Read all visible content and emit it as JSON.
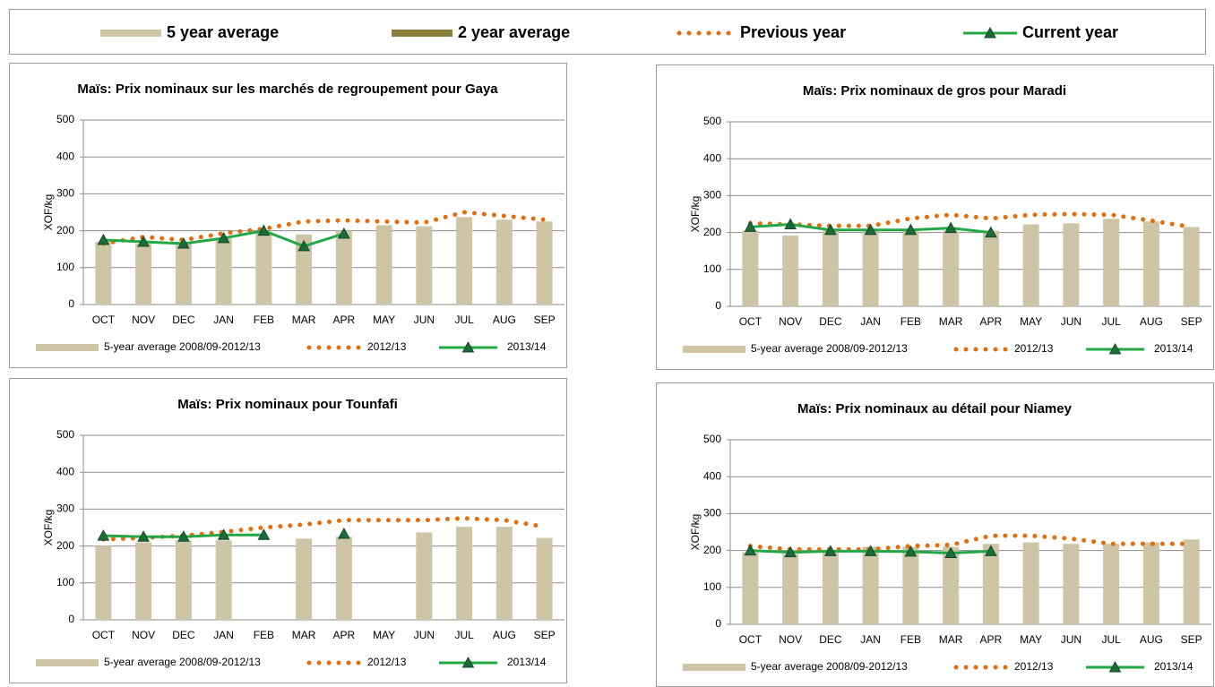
{
  "legend": {
    "items": [
      {
        "name": "5 year average",
        "color": "#cdc5a6",
        "style": "band"
      },
      {
        "name": "2 year average",
        "color": "#8b7d3a",
        "style": "band"
      },
      {
        "name": "Previous year",
        "color": "#e46c0a",
        "style": "dotted"
      },
      {
        "name": "Current year",
        "color": "#22a845",
        "style": "line"
      }
    ]
  },
  "chart_data": [
    {
      "type": "combo",
      "title": "Maïs: Prix nominaux sur les marchés de regroupement pour Gaya",
      "y_label": "XOF/kg",
      "categories": [
        "OCT",
        "NOV",
        "DEC",
        "JAN",
        "FEB",
        "MAR",
        "APR",
        "MAY",
        "JUN",
        "JUL",
        "AUG",
        "SEP"
      ],
      "ylim": [
        0,
        500
      ],
      "yticks": [
        0,
        100,
        200,
        300,
        400,
        500
      ],
      "grid": true,
      "series": [
        {
          "name": "5-year average 2008/09-2012/13",
          "type": "bar",
          "color": "#cdc5a6",
          "values": [
            170,
            165,
            170,
            180,
            195,
            190,
            200,
            215,
            212,
            237,
            230,
            225
          ]
        },
        {
          "name": "2012/13",
          "type": "line",
          "line_style": "dotted",
          "color": "#e46c0a",
          "values": [
            165,
            183,
            175,
            193,
            205,
            225,
            228,
            225,
            222,
            250,
            240,
            230
          ]
        },
        {
          "name": "2013/14",
          "type": "line",
          "line_style": "solid",
          "marker": "triangle",
          "color": "#22a845",
          "values": [
            175,
            170,
            165,
            180,
            200,
            158,
            192,
            null,
            null,
            null,
            null,
            null
          ]
        }
      ]
    },
    {
      "type": "combo",
      "title": "Maïs: Prix nominaux de gros pour Maradi",
      "y_label": "XOF/kg",
      "categories": [
        "OCT",
        "NOV",
        "DEC",
        "JAN",
        "FEB",
        "MAR",
        "APR",
        "MAY",
        "JUN",
        "JUL",
        "AUG",
        "SEP"
      ],
      "ylim": [
        0,
        500
      ],
      "yticks": [
        0,
        100,
        200,
        300,
        400,
        500
      ],
      "grid": true,
      "series": [
        {
          "name": "5-year average 2008/09-2012/13",
          "type": "bar",
          "color": "#cdc5a6",
          "values": [
            205,
            192,
            205,
            205,
            205,
            205,
            205,
            222,
            225,
            237,
            230,
            215
          ]
        },
        {
          "name": "2012/13",
          "type": "line",
          "line_style": "dotted",
          "color": "#e46c0a",
          "values": [
            225,
            222,
            218,
            218,
            238,
            248,
            238,
            248,
            250,
            248,
            232,
            215
          ]
        },
        {
          "name": "2013/14",
          "type": "line",
          "line_style": "solid",
          "marker": "triangle",
          "color": "#22a845",
          "values": [
            215,
            222,
            207,
            207,
            207,
            212,
            200,
            null,
            null,
            null,
            null,
            null
          ]
        }
      ]
    },
    {
      "type": "combo",
      "title": "Maïs: Prix nominaux pour Tounfafi",
      "y_label": "XOF/kg",
      "categories": [
        "OCT",
        "NOV",
        "DEC",
        "JAN",
        "FEB",
        "MAR",
        "APR",
        "MAY",
        "JUN",
        "JUL",
        "AUG",
        "SEP"
      ],
      "ylim": [
        0,
        500
      ],
      "yticks": [
        0,
        100,
        200,
        300,
        400,
        500
      ],
      "grid": true,
      "series": [
        {
          "name": "5-year average 2008/09-2012/13",
          "type": "bar",
          "color": "#cdc5a6",
          "values": [
            200,
            210,
            215,
            215,
            null,
            220,
            225,
            null,
            237,
            252,
            252,
            222
          ]
        },
        {
          "name": "2012/13",
          "type": "line",
          "line_style": "dotted",
          "color": "#e46c0a",
          "values": [
            218,
            222,
            228,
            238,
            250,
            258,
            270,
            270,
            270,
            275,
            270,
            252
          ]
        },
        {
          "name": "2013/14",
          "type": "line",
          "line_style": "solid",
          "marker": "triangle",
          "color": "#22a845",
          "values": [
            228,
            225,
            225,
            230,
            230,
            null,
            233,
            null,
            null,
            null,
            null,
            null
          ]
        }
      ]
    },
    {
      "type": "combo",
      "title": "Maïs: Prix nominaux au détail pour Niamey",
      "y_label": "XOF/kg",
      "categories": [
        "OCT",
        "NOV",
        "DEC",
        "JAN",
        "FEB",
        "MAR",
        "APR",
        "MAY",
        "JUN",
        "JUL",
        "AUG",
        "SEP"
      ],
      "ylim": [
        0,
        500
      ],
      "yticks": [
        0,
        100,
        200,
        300,
        400,
        500
      ],
      "grid": true,
      "series": [
        {
          "name": "5-year average 2008/09-2012/13",
          "type": "bar",
          "color": "#cdc5a6",
          "values": [
            195,
            190,
            195,
            210,
            210,
            210,
            218,
            222,
            218,
            218,
            222,
            230
          ]
        },
        {
          "name": "2012/13",
          "type": "line",
          "line_style": "dotted",
          "color": "#e46c0a",
          "values": [
            212,
            203,
            203,
            203,
            212,
            215,
            240,
            240,
            232,
            218,
            218,
            218
          ]
        },
        {
          "name": "2013/14",
          "type": "line",
          "line_style": "solid",
          "marker": "triangle",
          "color": "#22a845",
          "values": [
            200,
            195,
            198,
            198,
            197,
            193,
            198,
            null,
            null,
            null,
            null,
            null
          ]
        }
      ]
    }
  ]
}
